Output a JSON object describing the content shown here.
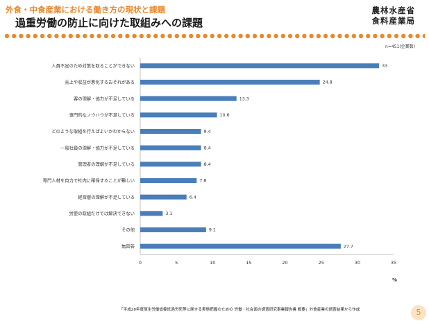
{
  "header": {
    "subtitle": "外食・中食産業における働き方の現状と課題",
    "title": "過重労働の防止に向けた取組みへの課題",
    "ministry_line1": "農林水産省",
    "ministry_line2": "食料産業局"
  },
  "colors": {
    "accent": "#e8892d",
    "bar": "#4a7ebb",
    "grid": "#d9d9d9"
  },
  "chart_data": {
    "type": "bar",
    "orientation": "horizontal",
    "categories": [
      "人員不足のため対策を取ることができない",
      "売上や収益が悪化するおそれがある",
      "客の理解・協力が不足している",
      "専門的なノウハウが不足している",
      "どのような取組を行えばよいかわからない",
      "一般社員の理解・協力が不足している",
      "管理者の理解が不足している",
      "専門人材を自力で社内に確保することが難しい",
      "経営層の理解が不足している",
      "労使の取組だけでは解決できない",
      "その他",
      "無回答"
    ],
    "values": [
      33,
      24.8,
      13.3,
      10.6,
      8.4,
      8.4,
      8.4,
      7.8,
      6.4,
      3.1,
      9.1,
      27.7
    ],
    "value_labels": [
      "33",
      "24.8",
      "13.3",
      "10.6",
      "8.4",
      "8.4",
      "8.4",
      "7.8",
      "6.4",
      "3.1",
      "9.1",
      "27.7"
    ],
    "xlim": [
      0,
      35
    ],
    "xticks": [
      "0",
      "5",
      "10",
      "15",
      "20",
      "25",
      "30",
      "35"
    ],
    "xlabel": "%",
    "sample_note": "n=451(企業数)",
    "grid": false
  },
  "source": "「平成28年度厚生労働省委託過労死等に関する実態把握のための 労働・社会面の調査研究事業報告書 概要」外食産業の調査結果から作成",
  "page_number": "5"
}
